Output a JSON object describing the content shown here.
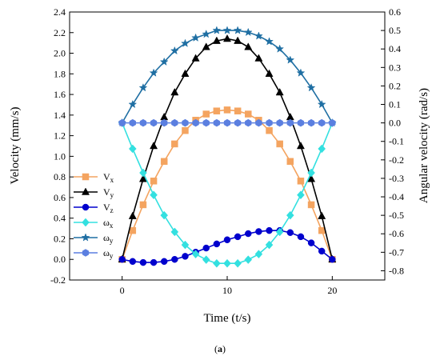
{
  "caption": {
    "open": "(",
    "letter": "a",
    "close": ")"
  },
  "chart_data": {
    "type": "line",
    "xlabel": "Time (t/s)",
    "ylabel_left": "Velocity (mm/s)",
    "ylabel_right": "Angular velocity (rad/s)",
    "xlim": [
      -5,
      25
    ],
    "ylim_left": [
      -0.2,
      2.4
    ],
    "ylim_right": [
      -0.85,
      0.6
    ],
    "x_ticks": [
      0,
      10,
      20
    ],
    "y_left_ticks": [
      -0.2,
      0.0,
      0.2,
      0.4,
      0.6,
      0.8,
      1.0,
      1.2,
      1.4,
      1.6,
      1.8,
      2.0,
      2.2,
      2.4
    ],
    "y_right_ticks": [
      -0.8,
      -0.7,
      -0.6,
      -0.5,
      -0.4,
      -0.3,
      -0.2,
      -0.1,
      0.0,
      0.1,
      0.2,
      0.3,
      0.4,
      0.5,
      0.6
    ],
    "x": [
      0,
      1,
      2,
      3,
      4,
      5,
      6,
      7,
      8,
      9,
      10,
      11,
      12,
      13,
      14,
      15,
      16,
      17,
      18,
      19,
      20
    ],
    "legend_position": "bottom-left",
    "series": [
      {
        "name": "Vx",
        "name_base": "V",
        "name_sub": "x",
        "axis": "left",
        "color": "#f4a460",
        "marker": "square",
        "values": [
          0.0,
          0.28,
          0.53,
          0.76,
          0.95,
          1.12,
          1.25,
          1.35,
          1.41,
          1.44,
          1.45,
          1.44,
          1.41,
          1.35,
          1.25,
          1.12,
          0.95,
          0.76,
          0.53,
          0.28,
          0.0
        ]
      },
      {
        "name": "Vy",
        "name_base": "V",
        "name_sub": "y",
        "axis": "left",
        "color": "#000000",
        "marker": "triangle",
        "values": [
          0.0,
          0.42,
          0.78,
          1.1,
          1.38,
          1.62,
          1.8,
          1.95,
          2.06,
          2.12,
          2.14,
          2.12,
          2.06,
          1.95,
          1.8,
          1.62,
          1.38,
          1.1,
          0.78,
          0.42,
          0.0
        ]
      },
      {
        "name": "Vz",
        "name_base": "V",
        "name_sub": "z",
        "axis": "left",
        "color": "#0000cd",
        "marker": "circle",
        "values": [
          0.0,
          -0.02,
          -0.03,
          -0.03,
          -0.02,
          0.0,
          0.03,
          0.07,
          0.11,
          0.15,
          0.19,
          0.22,
          0.25,
          0.27,
          0.28,
          0.28,
          0.26,
          0.22,
          0.16,
          0.08,
          0.0
        ]
      },
      {
        "name": "ωx",
        "name_base": "ω",
        "name_sub": "x",
        "axis": "right",
        "color": "#33e0e0",
        "marker": "diamond",
        "values": [
          0.0,
          -0.14,
          -0.27,
          -0.39,
          -0.5,
          -0.59,
          -0.66,
          -0.71,
          -0.74,
          -0.76,
          -0.76,
          -0.76,
          -0.74,
          -0.71,
          -0.66,
          -0.59,
          -0.5,
          -0.39,
          -0.27,
          -0.14,
          0.0
        ]
      },
      {
        "name": "ωy",
        "name_base": "ω",
        "name_sub": "y",
        "axis": "right",
        "color": "#1f6fa3",
        "marker": "star",
        "values": [
          0.0,
          0.1,
          0.19,
          0.27,
          0.33,
          0.39,
          0.43,
          0.46,
          0.48,
          0.5,
          0.5,
          0.5,
          0.49,
          0.47,
          0.44,
          0.4,
          0.34,
          0.27,
          0.19,
          0.1,
          0.0
        ]
      },
      {
        "name": "ωy",
        "name_base": "ω",
        "name_sub": "y",
        "axis": "right",
        "color": "#5b7fe0",
        "marker": "hexagon",
        "values": [
          0.0,
          0.0,
          0.0,
          0.0,
          0.0,
          0.0,
          0.0,
          0.0,
          0.0,
          0.0,
          0.0,
          0.0,
          0.0,
          0.0,
          0.0,
          0.0,
          0.0,
          0.0,
          0.0,
          0.0,
          0.0
        ]
      }
    ]
  }
}
